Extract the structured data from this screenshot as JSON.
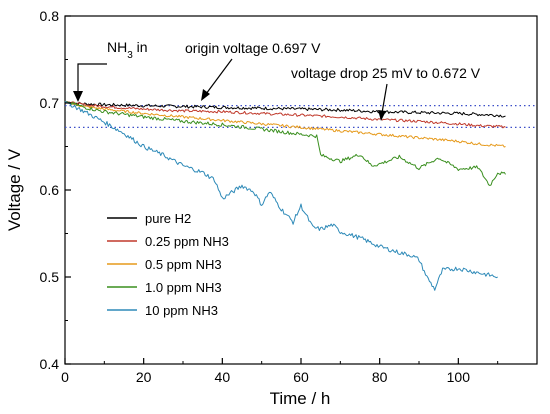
{
  "chart_data": {
    "type": "line",
    "xlabel": "Time / h",
    "ylabel": "Voltage / V",
    "xlim": [
      0,
      120
    ],
    "ylim": [
      0.4,
      0.8
    ],
    "xticks": [
      0,
      20,
      40,
      60,
      80,
      100
    ],
    "yticks": [
      0.4,
      0.5,
      0.6,
      0.7,
      0.8
    ],
    "grid": false,
    "legend_position": "bottom-left",
    "reference_lines": [
      0.697,
      0.672
    ],
    "annotations": {
      "nh3_in": "NH3 in",
      "origin": "origin voltage 0.697 V",
      "drop": "voltage drop 25 mV to 0.672 V"
    },
    "series": [
      {
        "name": "pure H2",
        "color": "#000000",
        "x": [
          0,
          2,
          5,
          10,
          20,
          30,
          40,
          50,
          60,
          70,
          80,
          90,
          100,
          105,
          110,
          112
        ],
        "y": [
          0.702,
          0.7,
          0.699,
          0.698,
          0.697,
          0.696,
          0.695,
          0.694,
          0.693,
          0.692,
          0.69,
          0.689,
          0.688,
          0.687,
          0.686,
          0.685
        ]
      },
      {
        "name": "0.25 ppm NH3",
        "color": "#c0392b",
        "x": [
          0,
          2,
          5,
          10,
          20,
          30,
          40,
          50,
          60,
          70,
          80,
          90,
          100,
          105,
          110,
          112
        ],
        "y": [
          0.702,
          0.7,
          0.698,
          0.696,
          0.693,
          0.691,
          0.69,
          0.688,
          0.686,
          0.684,
          0.681,
          0.679,
          0.676,
          0.674,
          0.673,
          0.672
        ]
      },
      {
        "name": "0.5 ppm NH3",
        "color": "#e69a1c",
        "x": [
          0,
          2,
          5,
          10,
          20,
          30,
          40,
          50,
          60,
          70,
          80,
          90,
          100,
          105,
          110,
          112
        ],
        "y": [
          0.702,
          0.699,
          0.696,
          0.693,
          0.688,
          0.684,
          0.68,
          0.676,
          0.672,
          0.668,
          0.664,
          0.66,
          0.656,
          0.653,
          0.651,
          0.65
        ]
      },
      {
        "name": "1.0 ppm NH3",
        "color": "#3a8f1f",
        "x": [
          0,
          2,
          5,
          10,
          20,
          30,
          40,
          50,
          60,
          64,
          65,
          70,
          75,
          78,
          80,
          85,
          90,
          95,
          100,
          105,
          108,
          110,
          112
        ],
        "y": [
          0.702,
          0.699,
          0.695,
          0.69,
          0.684,
          0.679,
          0.675,
          0.67,
          0.664,
          0.662,
          0.64,
          0.633,
          0.641,
          0.628,
          0.63,
          0.638,
          0.625,
          0.637,
          0.624,
          0.626,
          0.605,
          0.62,
          0.618
        ]
      },
      {
        "name": "10 ppm NH3",
        "color": "#2e8ab8",
        "x": [
          0,
          2,
          5,
          10,
          15,
          20,
          25,
          30,
          35,
          38,
          40,
          42,
          45,
          48,
          50,
          52,
          55,
          58,
          60,
          63,
          65,
          68,
          70,
          75,
          80,
          85,
          88,
          90,
          92,
          94,
          96,
          100,
          105,
          110
        ],
        "y": [
          0.702,
          0.697,
          0.69,
          0.678,
          0.665,
          0.65,
          0.64,
          0.628,
          0.62,
          0.612,
          0.59,
          0.596,
          0.605,
          0.598,
          0.583,
          0.598,
          0.578,
          0.563,
          0.582,
          0.557,
          0.555,
          0.56,
          0.552,
          0.545,
          0.535,
          0.528,
          0.525,
          0.52,
          0.5,
          0.486,
          0.508,
          0.51,
          0.505,
          0.5
        ]
      }
    ]
  }
}
